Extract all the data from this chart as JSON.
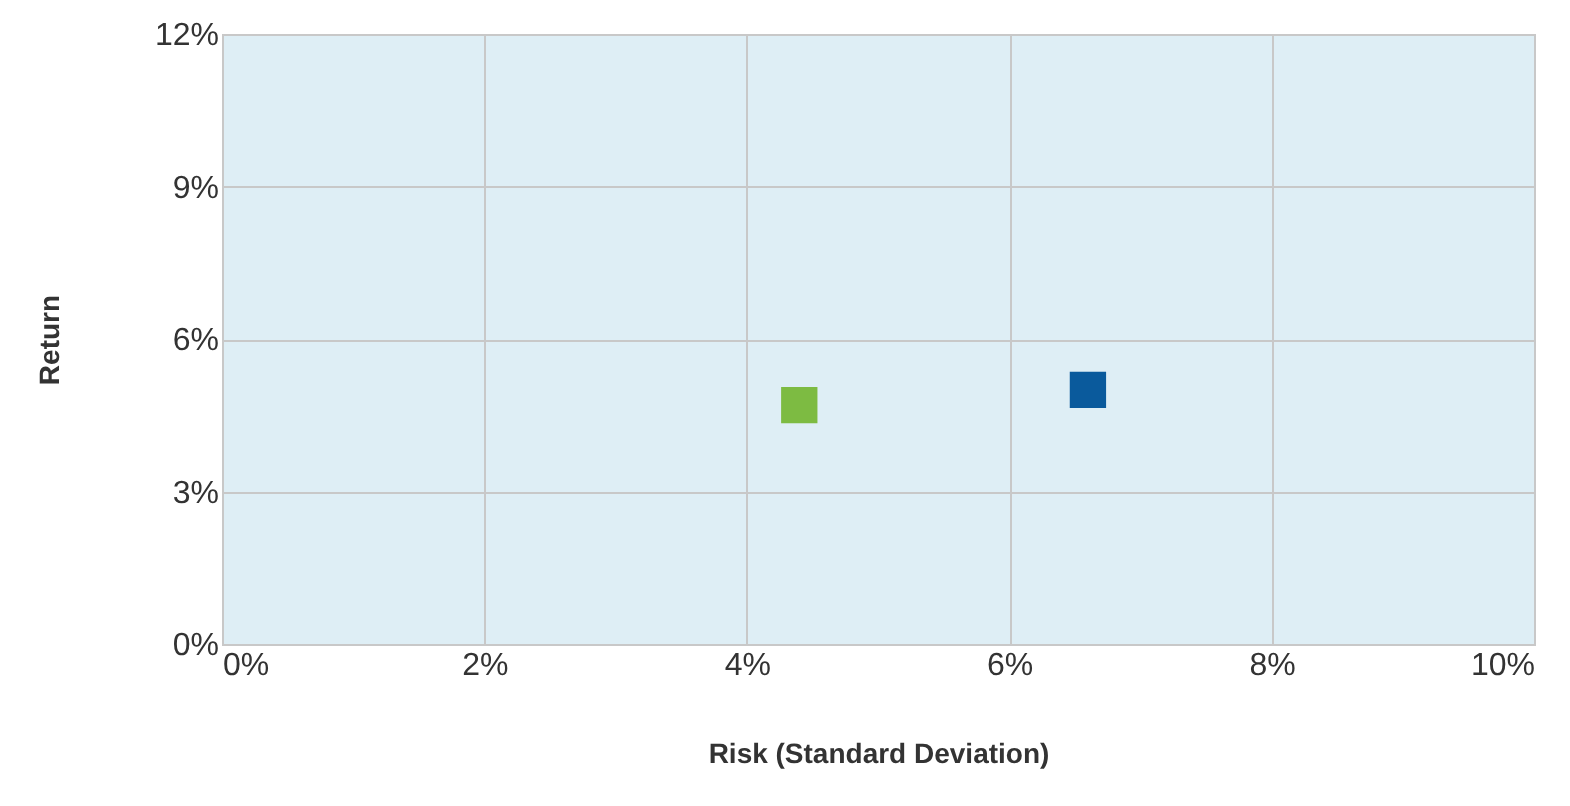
{
  "chart_data": {
    "type": "scatter",
    "xlabel": "Risk (Standard Deviation)",
    "ylabel": "Return",
    "marker": "square",
    "grid": true,
    "series": [
      {
        "color": "#7dbb42",
        "x": [
          4.4
        ],
        "values": [
          4.7
        ]
      },
      {
        "color": "#0a5a9c",
        "x": [
          6.6
        ],
        "values": [
          5.0
        ]
      }
    ],
    "xlim": [
      0,
      10
    ],
    "xticks": [
      {
        "value": 0,
        "label": "0%"
      },
      {
        "value": 2,
        "label": "2%"
      },
      {
        "value": 4,
        "label": "4%"
      },
      {
        "value": 6,
        "label": "6%"
      },
      {
        "value": 8,
        "label": "8%"
      },
      {
        "value": 10,
        "label": "10%"
      }
    ],
    "ylim": [
      0,
      12
    ],
    "yticks": [
      {
        "value": 0,
        "label": "0%"
      },
      {
        "value": 3,
        "label": "3%"
      },
      {
        "value": 6,
        "label": "6%"
      },
      {
        "value": 9,
        "label": "9%"
      },
      {
        "value": 12,
        "label": "12%"
      }
    ]
  }
}
